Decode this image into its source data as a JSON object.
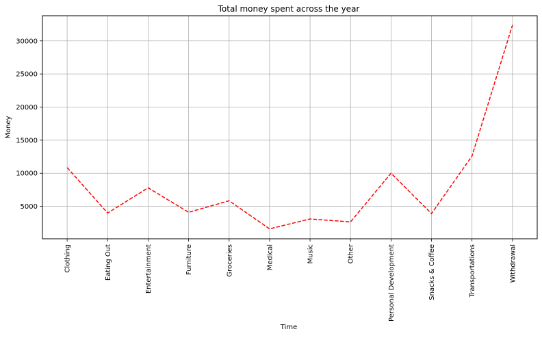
{
  "chart_data": {
    "type": "line",
    "title": "Total money spent across the year",
    "xlabel": "Time",
    "ylabel": "Money",
    "categories": [
      "Clothing",
      "Eating Out",
      "Entertainment",
      "Furniture",
      "Groceries",
      "Medical",
      "Music",
      "Other",
      "Personal Development",
      "Snacks & Coffee",
      "Transportations",
      "Withdrawal"
    ],
    "series": [
      {
        "values": [
          10850,
          4000,
          7800,
          4100,
          5850,
          1600,
          3100,
          2650,
          10000,
          3900,
          12600,
          32400
        ],
        "color": "#ff0000",
        "line_style": "dashed"
      }
    ],
    "ylim": [
      100,
      33800
    ],
    "yticks": [
      5000,
      10000,
      15000,
      20000,
      25000,
      30000
    ],
    "grid": true,
    "legend": "none"
  }
}
